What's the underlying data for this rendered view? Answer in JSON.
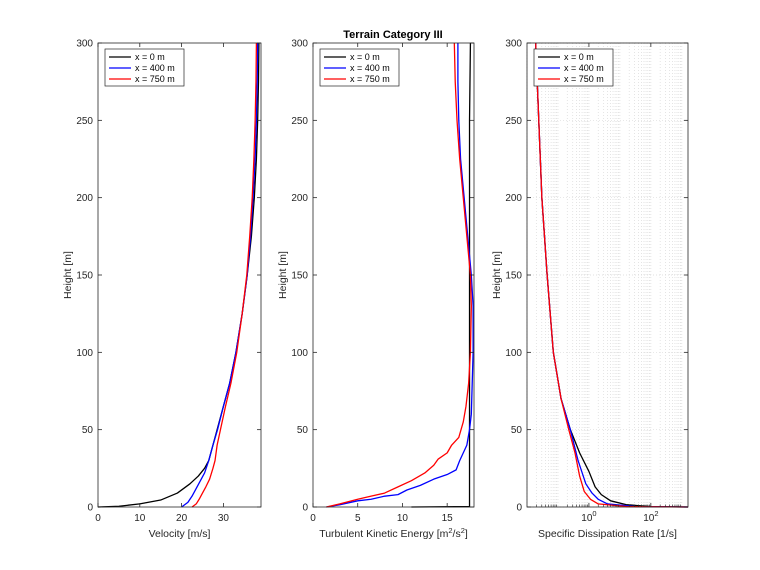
{
  "title": "Terrain Category III",
  "chart_data": [
    {
      "type": "line",
      "xlabel": "Velocity [m/s]",
      "ylabel": "Height [m]",
      "xlim": [
        0,
        39
      ],
      "ylim": [
        0,
        300
      ],
      "xscale": "linear",
      "xticks": [
        0,
        10,
        20,
        30
      ],
      "xtick_labels": [
        "0",
        "10",
        "20",
        "30"
      ],
      "yticks": [
        0,
        50,
        100,
        150,
        200,
        250,
        300
      ],
      "grid": false,
      "legend": "top-left",
      "series": [
        {
          "name": "x = 0 m",
          "color": "#000000",
          "points": [
            [
              0,
              0
            ],
            [
              5,
              0.5
            ],
            [
              10,
              2
            ],
            [
              15,
              4.5
            ],
            [
              19,
              9
            ],
            [
              22,
              15
            ],
            [
              24,
              20
            ],
            [
              25.5,
              25
            ],
            [
              26.5,
              30
            ],
            [
              27.5,
              40
            ],
            [
              28.5,
              50
            ],
            [
              30,
              65
            ],
            [
              31.5,
              80
            ],
            [
              33,
              100
            ],
            [
              34.5,
              125
            ],
            [
              35.7,
              150
            ],
            [
              36.7,
              175
            ],
            [
              37.4,
              200
            ],
            [
              37.9,
              225
            ],
            [
              38.2,
              250
            ],
            [
              38.4,
              275
            ],
            [
              38.5,
              300
            ]
          ]
        },
        {
          "name": "x = 400 m",
          "color": "#0000ff",
          "points": [
            [
              20,
              0
            ],
            [
              21.5,
              3
            ],
            [
              22.5,
              7
            ],
            [
              23.5,
              12
            ],
            [
              24.5,
              17
            ],
            [
              25.5,
              22
            ],
            [
              26.5,
              30
            ],
            [
              27.5,
              40
            ],
            [
              28.6,
              50
            ],
            [
              30,
              65
            ],
            [
              31.5,
              80
            ],
            [
              33,
              100
            ],
            [
              34.5,
              125
            ],
            [
              35.7,
              150
            ],
            [
              36.5,
              175
            ],
            [
              37.1,
              200
            ],
            [
              37.6,
              225
            ],
            [
              37.9,
              250
            ],
            [
              38.1,
              275
            ],
            [
              38.2,
              300
            ]
          ]
        },
        {
          "name": "x = 750 m",
          "color": "#ff0000",
          "points": [
            [
              22.5,
              0
            ],
            [
              23.5,
              2
            ],
            [
              24.2,
              5
            ],
            [
              25,
              9
            ],
            [
              25.8,
              13
            ],
            [
              26.7,
              18
            ],
            [
              27.5,
              25
            ],
            [
              28,
              30
            ],
            [
              28.5,
              40
            ],
            [
              29.3,
              50
            ],
            [
              30.5,
              65
            ],
            [
              31.8,
              80
            ],
            [
              33.2,
              100
            ],
            [
              34.5,
              125
            ],
            [
              35.6,
              150
            ],
            [
              36.3,
              175
            ],
            [
              36.9,
              200
            ],
            [
              37.3,
              225
            ],
            [
              37.6,
              250
            ],
            [
              37.8,
              275
            ],
            [
              37.9,
              300
            ]
          ]
        }
      ]
    },
    {
      "type": "line",
      "xlabel": "Turbulent Kinetic Energy [m²/s²]",
      "ylabel": "Height [m]",
      "xlim": [
        0,
        18
      ],
      "ylim": [
        0,
        300
      ],
      "xscale": "linear",
      "xticks": [
        0,
        5,
        10,
        15
      ],
      "xtick_labels": [
        "0",
        "5",
        "10",
        "15"
      ],
      "yticks": [
        0,
        50,
        100,
        150,
        200,
        250,
        300
      ],
      "grid": false,
      "legend": "top-left",
      "series": [
        {
          "name": "x = 0 m",
          "color": "#000000",
          "points": [
            [
              11,
              0
            ],
            [
              17.5,
              0.3
            ],
            [
              17.5,
              50
            ],
            [
              17.5,
              100
            ],
            [
              17.5,
              150
            ],
            [
              17.5,
              200
            ],
            [
              17.5,
              250
            ],
            [
              17.6,
              300
            ]
          ]
        },
        {
          "name": "x = 400 m",
          "color": "#0000ff",
          "points": [
            [
              1.5,
              0
            ],
            [
              3,
              1.5
            ],
            [
              5,
              4
            ],
            [
              6.5,
              5
            ],
            [
              8,
              7
            ],
            [
              9.5,
              8
            ],
            [
              10.5,
              11
            ],
            [
              12,
              14
            ],
            [
              13.5,
              18
            ],
            [
              15,
              21
            ],
            [
              16,
              24
            ],
            [
              16.4,
              30
            ],
            [
              16.8,
              35
            ],
            [
              17.2,
              40
            ],
            [
              17.5,
              50
            ],
            [
              17.7,
              60
            ],
            [
              17.8,
              80
            ],
            [
              17.9,
              100
            ],
            [
              17.9,
              130
            ],
            [
              17.7,
              150
            ],
            [
              17.3,
              175
            ],
            [
              16.9,
              200
            ],
            [
              16.5,
              225
            ],
            [
              16.3,
              250
            ],
            [
              16.2,
              275
            ],
            [
              16.2,
              300
            ]
          ]
        },
        {
          "name": "x = 750 m",
          "color": "#ff0000",
          "points": [
            [
              1.5,
              0
            ],
            [
              3,
              2
            ],
            [
              5,
              5
            ],
            [
              6.5,
              7
            ],
            [
              8,
              9
            ],
            [
              9.5,
              13
            ],
            [
              11,
              17
            ],
            [
              12.5,
              22
            ],
            [
              13.5,
              27
            ],
            [
              14,
              31
            ],
            [
              15,
              35
            ],
            [
              15.5,
              40
            ],
            [
              16.3,
              45
            ],
            [
              16.8,
              55
            ],
            [
              17.1,
              65
            ],
            [
              17.4,
              80
            ],
            [
              17.6,
              100
            ],
            [
              17.7,
              130
            ],
            [
              17.6,
              150
            ],
            [
              17.2,
              175
            ],
            [
              16.8,
              200
            ],
            [
              16.4,
              225
            ],
            [
              16.1,
              250
            ],
            [
              15.9,
              275
            ],
            [
              15.8,
              300
            ]
          ]
        }
      ]
    },
    {
      "type": "line",
      "xlabel": "Specific Dissipation Rate [1/s]",
      "ylabel": "Height [m]",
      "xlim": [
        -2,
        3.2
      ],
      "ylim": [
        0,
        300
      ],
      "xscale": "log",
      "xscale_note_values_are_log10": true,
      "xticks": [
        0,
        2
      ],
      "xtick_labels": [
        "10",
        "10"
      ],
      "xtick_exponents": [
        "0",
        "2"
      ],
      "yticks": [
        0,
        50,
        100,
        150,
        200,
        250,
        300
      ],
      "grid": true,
      "legend": "top-left",
      "series": [
        {
          "name": "x = 0 m",
          "color": "#000000",
          "points": [
            [
              3.2,
              0
            ],
            [
              2,
              0.3
            ],
            [
              1.2,
              1.5
            ],
            [
              0.7,
              4
            ],
            [
              0.4,
              8
            ],
            [
              0.2,
              13
            ],
            [
              0,
              23
            ],
            [
              -0.3,
              35
            ],
            [
              -0.6,
              50
            ],
            [
              -0.9,
              70
            ],
            [
              -1.15,
              100
            ],
            [
              -1.35,
              150
            ],
            [
              -1.52,
              200
            ],
            [
              -1.62,
              250
            ],
            [
              -1.68,
              280
            ],
            [
              -1.72,
              300
            ]
          ]
        },
        {
          "name": "x = 400 m",
          "color": "#0000ff",
          "points": [
            [
              3.2,
              0
            ],
            [
              1.5,
              0.3
            ],
            [
              0.6,
              2
            ],
            [
              0.3,
              5
            ],
            [
              0.1,
              9
            ],
            [
              -0.1,
              15
            ],
            [
              -0.35,
              30
            ],
            [
              -0.6,
              50
            ],
            [
              -0.9,
              70
            ],
            [
              -1.15,
              100
            ],
            [
              -1.35,
              150
            ],
            [
              -1.52,
              200
            ],
            [
              -1.62,
              250
            ],
            [
              -1.68,
              280
            ],
            [
              -1.72,
              300
            ]
          ]
        },
        {
          "name": "x = 750 m",
          "color": "#ff0000",
          "points": [
            [
              3.2,
              0
            ],
            [
              1.2,
              0.3
            ],
            [
              0.3,
              2
            ],
            [
              0.05,
              5
            ],
            [
              -0.15,
              10
            ],
            [
              -0.3,
              20
            ],
            [
              -0.45,
              35
            ],
            [
              -0.65,
              50
            ],
            [
              -0.9,
              70
            ],
            [
              -1.15,
              100
            ],
            [
              -1.35,
              150
            ],
            [
              -1.52,
              200
            ],
            [
              -1.62,
              250
            ],
            [
              -1.68,
              280
            ],
            [
              -1.72,
              300
            ]
          ]
        }
      ]
    }
  ]
}
